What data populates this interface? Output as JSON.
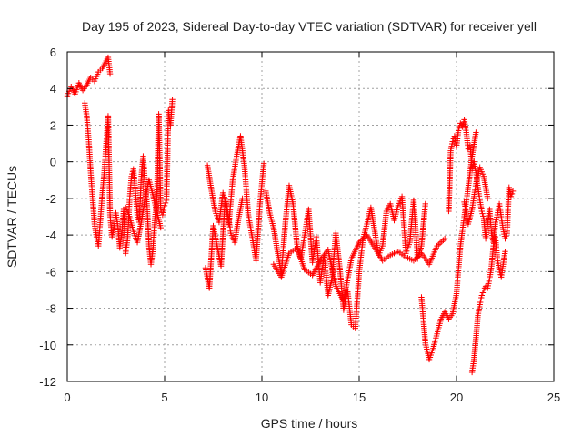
{
  "chart_data": {
    "type": "scatter",
    "title": "Day 195 of 2023, Sidereal Day-to-day VTEC variation (SDTVAR) for receiver yell",
    "xlabel": "GPS time / hours",
    "ylabel": "SDTVAR / TECUs",
    "xlim": [
      0,
      25
    ],
    "ylim": [
      -12,
      6
    ],
    "xticks": [
      0,
      5,
      10,
      15,
      20,
      25
    ],
    "yticks": [
      -12,
      -10,
      -8,
      -6,
      -4,
      -2,
      0,
      2,
      4,
      6
    ],
    "grid": true,
    "marker": "+",
    "color": "#ff0000",
    "segments": [
      {
        "x": [
          0.0,
          0.2,
          0.4,
          0.6,
          0.8,
          1.0,
          1.2,
          1.4,
          1.6,
          1.8,
          2.0,
          2.1,
          2.2
        ],
        "y": [
          3.6,
          4.1,
          3.7,
          4.3,
          3.9,
          4.2,
          4.6,
          4.4,
          4.9,
          5.1,
          5.5,
          5.7,
          4.8
        ]
      },
      {
        "x": [
          0.9,
          1.0,
          1.1,
          1.2,
          1.3,
          1.4,
          1.5,
          1.6,
          1.7,
          1.8,
          1.9,
          2.0,
          2.1,
          2.2,
          2.3,
          2.4,
          2.5,
          2.6,
          2.7,
          2.8,
          2.9,
          3.0,
          3.1,
          3.2,
          3.3,
          3.4,
          3.5,
          3.6,
          3.7,
          3.8,
          3.9,
          4.0,
          4.1,
          4.2,
          4.3,
          4.4,
          4.5,
          4.6,
          4.7,
          4.8,
          4.9,
          5.0,
          5.1,
          5.2,
          5.3,
          5.4
        ],
        "y": [
          3.2,
          2.5,
          1.2,
          -0.5,
          -2.0,
          -3.4,
          -4.1,
          -4.6,
          -3.2,
          -1.8,
          -0.6,
          1.0,
          2.5,
          -2.9,
          -4.1,
          -3.6,
          -2.8,
          -3.5,
          -4.7,
          -3.9,
          -2.6,
          -5.0,
          -4.2,
          -2.1,
          -0.8,
          -0.4,
          -1.6,
          -2.9,
          -3.3,
          -0.9,
          0.3,
          -1.2,
          -2.4,
          -4.6,
          -5.6,
          -4.8,
          -3.1,
          -2.2,
          2.6,
          -2.6,
          -2.9,
          -2.4,
          -2.1,
          2.8,
          1.9,
          3.4
        ]
      },
      {
        "x": [
          3.0,
          3.2,
          3.4,
          3.6,
          3.8,
          4.0,
          4.2,
          4.4,
          4.6,
          4.8
        ],
        "y": [
          -2.5,
          -3.0,
          -3.8,
          -4.4,
          -3.3,
          -2.0,
          -1.0,
          -1.8,
          -2.7,
          -3.6
        ]
      },
      {
        "x": [
          7.1,
          7.3,
          7.5,
          7.7,
          7.9,
          8.1,
          8.3,
          8.5,
          8.7,
          8.9,
          9.1,
          9.3,
          9.5,
          9.7,
          9.9,
          10.1
        ],
        "y": [
          -5.8,
          -6.9,
          -3.5,
          -4.6,
          -5.7,
          -2.2,
          -3.4,
          -1.0,
          0.3,
          1.4,
          -0.2,
          -2.9,
          -4.1,
          -5.4,
          -2.3,
          -0.1
        ]
      },
      {
        "x": [
          7.2,
          7.4,
          7.6,
          7.8,
          8.0,
          8.2,
          8.4,
          8.6,
          8.8,
          9.0
        ],
        "y": [
          -0.2,
          -1.5,
          -2.7,
          -3.3,
          -1.7,
          -2.4,
          -3.9,
          -4.4,
          -3.1,
          -2.0
        ]
      },
      {
        "x": [
          10.2,
          10.4,
          10.6,
          10.8,
          11.0,
          11.2,
          11.4,
          11.6,
          11.8,
          12.0,
          12.2,
          12.4,
          12.6,
          12.8,
          13.0,
          13.2,
          13.4,
          13.6,
          13.8,
          14.0,
          14.2,
          14.4,
          14.6,
          14.8,
          15.0,
          15.2,
          15.4,
          15.6,
          15.8,
          16.0,
          16.2,
          16.4,
          16.6,
          16.8,
          17.0,
          17.2,
          17.4,
          17.6,
          17.8,
          18.0,
          18.2,
          18.4
        ],
        "y": [
          -1.6,
          -2.8,
          -3.6,
          -4.9,
          -6.1,
          -3.4,
          -1.3,
          -2.3,
          -4.5,
          -5.3,
          -4.0,
          -2.6,
          -5.5,
          -4.1,
          -6.6,
          -5.1,
          -7.3,
          -6.4,
          -3.9,
          -5.8,
          -8.1,
          -7.0,
          -8.9,
          -9.1,
          -6.0,
          -4.2,
          -3.4,
          -2.5,
          -3.8,
          -5.1,
          -4.6,
          -2.7,
          -2.3,
          -3.2,
          -2.4,
          -1.9,
          -5.0,
          -4.4,
          -2.1,
          -5.3,
          -4.6,
          -2.3
        ]
      },
      {
        "x": [
          10.6,
          11.0,
          11.4,
          11.8,
          12.2,
          12.6,
          13.0,
          13.4,
          13.8,
          14.2,
          14.6,
          15.0,
          15.4,
          15.8,
          16.2,
          16.6,
          17.0,
          17.4,
          17.8,
          18.2,
          18.6,
          19.0,
          19.4
        ],
        "y": [
          -5.6,
          -6.3,
          -5.0,
          -4.7,
          -5.9,
          -6.2,
          -5.4,
          -4.8,
          -6.8,
          -7.6,
          -5.3,
          -4.4,
          -4.0,
          -4.7,
          -5.4,
          -5.1,
          -4.9,
          -5.2,
          -5.4,
          -5.0,
          -5.6,
          -4.6,
          -4.2
        ]
      },
      {
        "x": [
          18.2,
          18.4,
          18.6,
          18.8,
          19.0,
          19.2,
          19.4,
          19.6,
          19.8,
          20.0,
          20.2,
          20.4,
          20.6,
          20.8,
          21.0
        ],
        "y": [
          -7.4,
          -9.9,
          -10.8,
          -10.2,
          -9.4,
          -8.6,
          -8.2,
          -8.6,
          -8.3,
          -7.2,
          -4.6,
          -3.0,
          -1.4,
          0.3,
          1.6
        ]
      },
      {
        "x": [
          19.6,
          19.7,
          19.8,
          19.9,
          20.0,
          20.1,
          20.2,
          20.3,
          20.4,
          20.5,
          20.6,
          20.7,
          20.8,
          20.9,
          21.0,
          21.1,
          21.2,
          21.3,
          21.4,
          21.5,
          21.6,
          21.7,
          21.8,
          21.9,
          22.0,
          22.1,
          22.2,
          22.3,
          22.4,
          22.5,
          22.6,
          22.7,
          22.8,
          22.9
        ],
        "y": [
          -2.7,
          0.6,
          1.1,
          1.4,
          0.8,
          1.7,
          2.1,
          1.9,
          2.3,
          1.6,
          0.7,
          0.9,
          -0.4,
          0.0,
          -0.6,
          -1.4,
          -2.1,
          -2.7,
          -3.1,
          -4.2,
          -3.4,
          -2.6,
          -3.9,
          -4.4,
          -3.3,
          -2.9,
          -2.3,
          -3.0,
          -3.7,
          -4.2,
          -3.9,
          -1.4,
          -1.9,
          -1.6
        ]
      },
      {
        "x": [
          20.8,
          20.9,
          21.0,
          21.1,
          21.2,
          21.3,
          21.4,
          21.5,
          21.6,
          21.7,
          21.8,
          21.9,
          22.0,
          22.1,
          22.2,
          22.3,
          22.4,
          22.5
        ],
        "y": [
          -11.5,
          -10.8,
          -9.6,
          -8.4,
          -7.8,
          -7.3,
          -7.0,
          -6.8,
          -6.9,
          -6.4,
          -5.7,
          -4.6,
          -4.1,
          -5.3,
          -5.9,
          -6.3,
          -5.6,
          -4.9
        ]
      },
      {
        "x": [
          20.4,
          20.6,
          20.8,
          21.0,
          21.2,
          21.4,
          21.6
        ],
        "y": [
          -2.2,
          -3.4,
          -2.6,
          -1.2,
          -0.3,
          -0.8,
          -2.0
        ]
      }
    ]
  }
}
